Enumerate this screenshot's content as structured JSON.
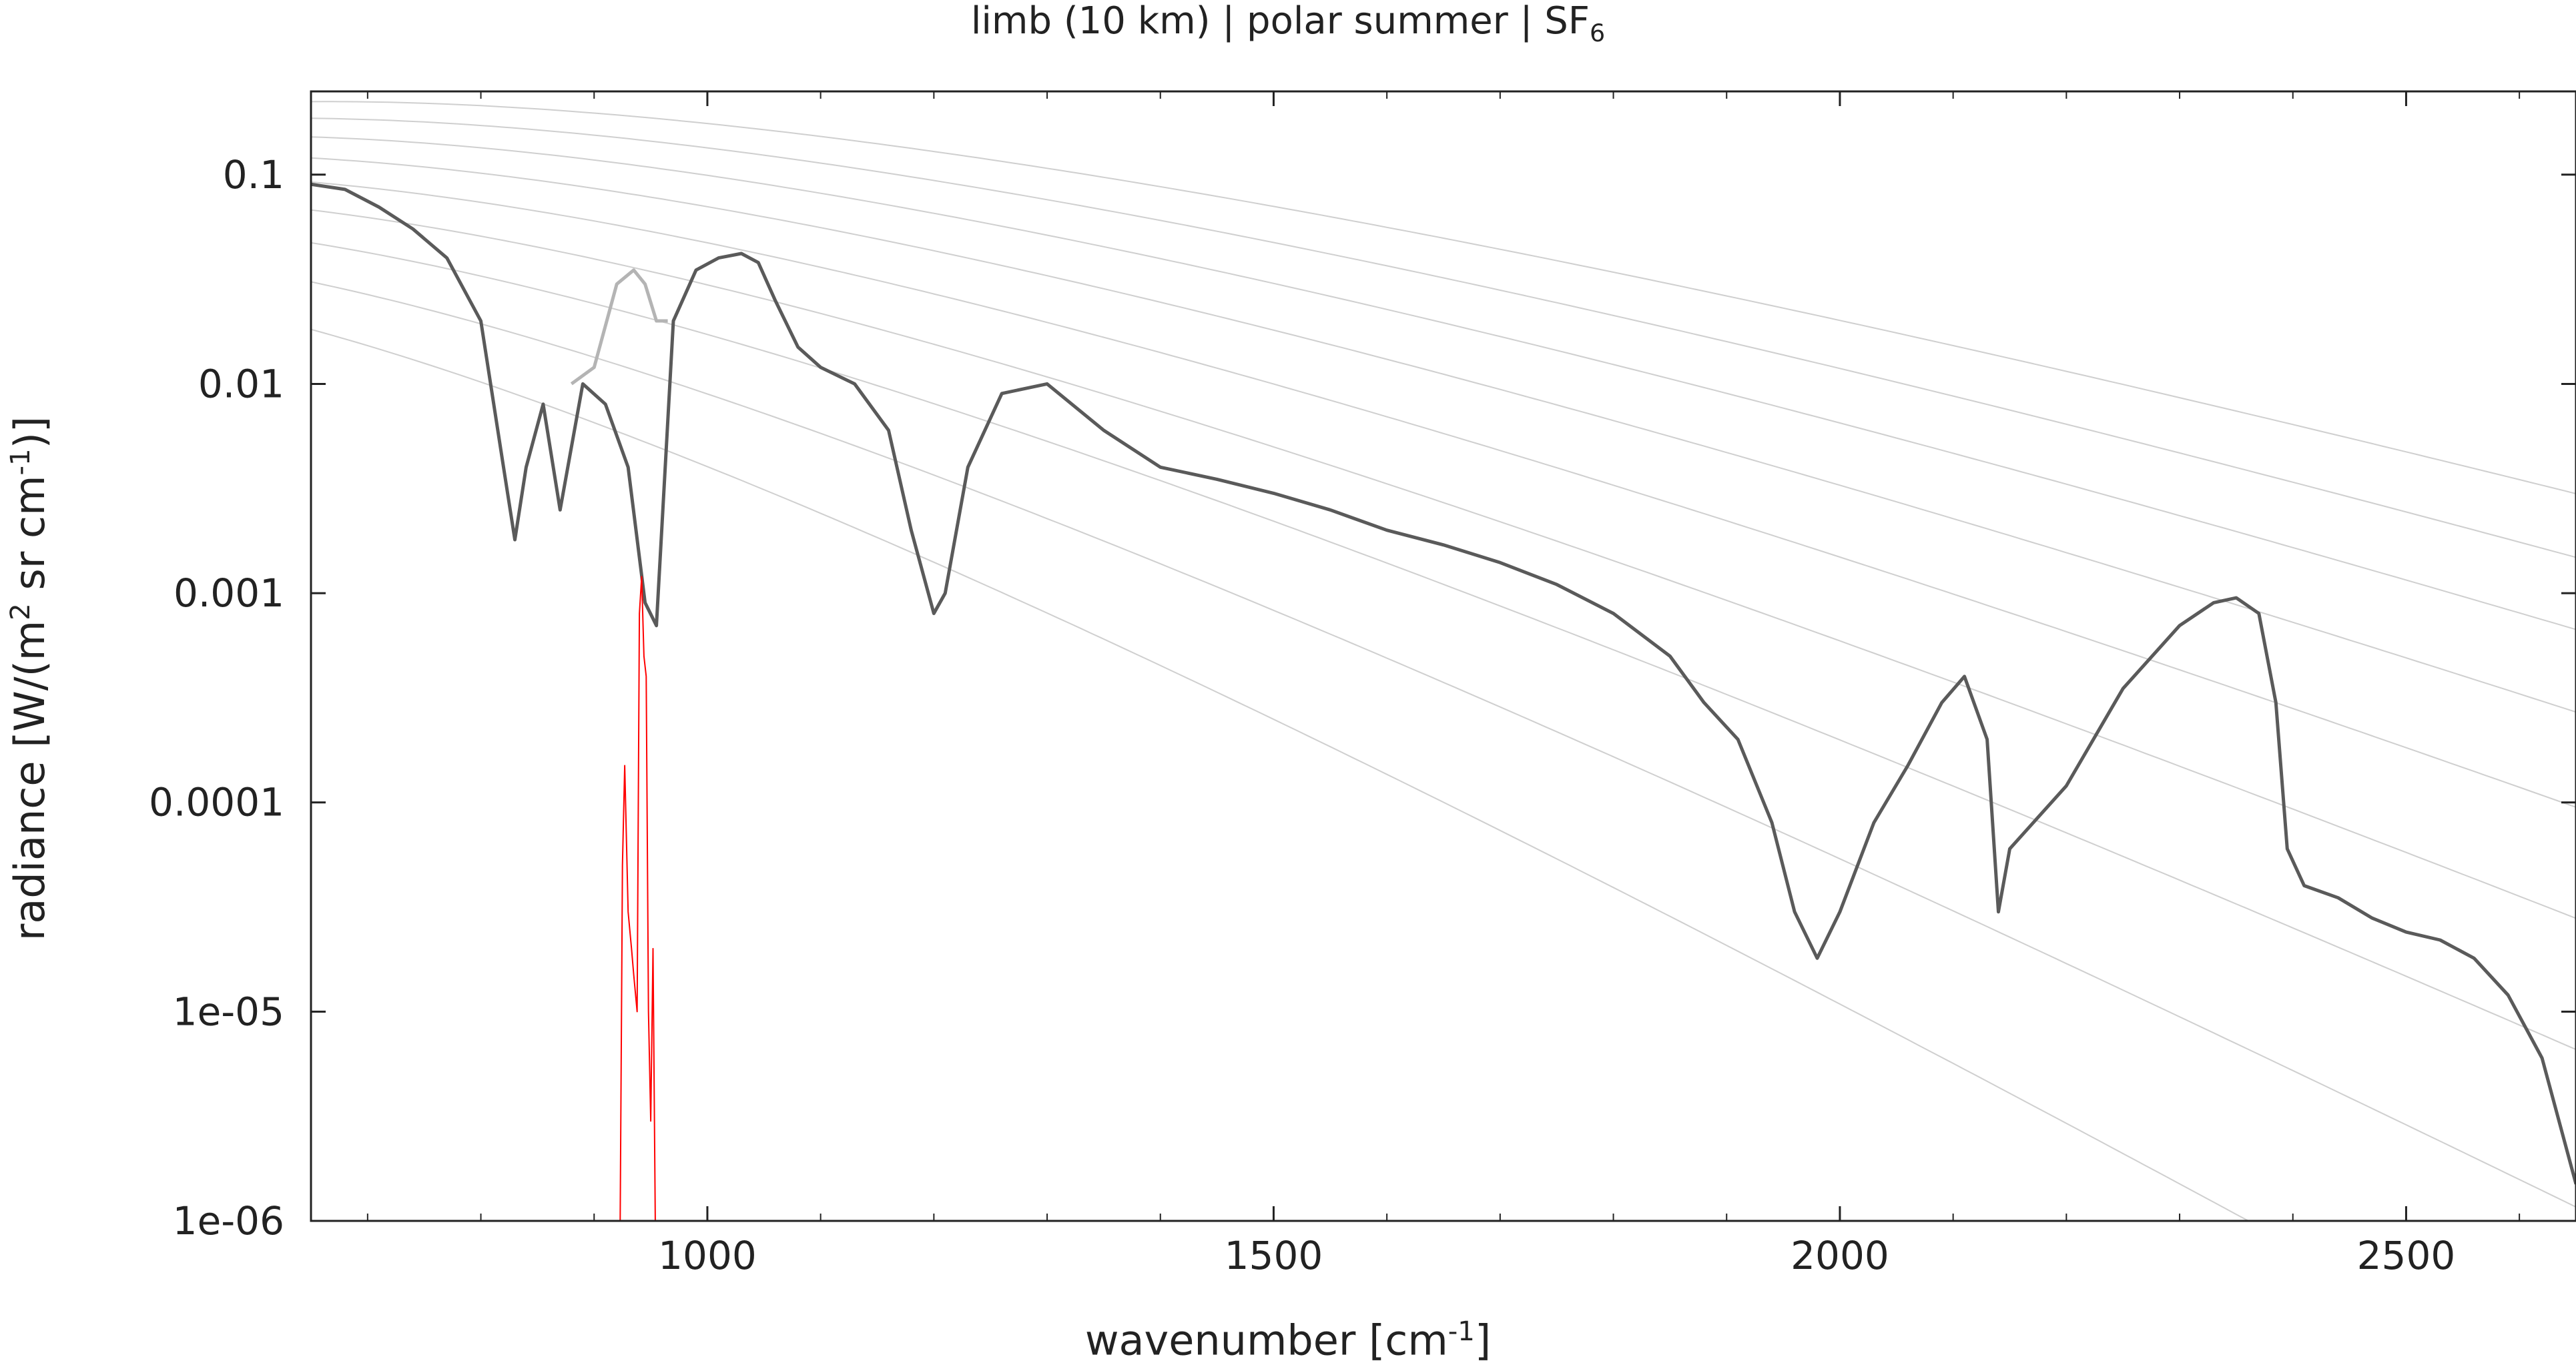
{
  "chart_data": {
    "type": "line",
    "title": "limb (10 km) | polar summer | SF",
    "title_subscript": "6",
    "xlabel": "wavenumber [cm",
    "xlabel_superscript": "-1",
    "xlabel_suffix": "]",
    "ylabel_parts": [
      "radiance [W/(m",
      "2",
      " sr cm",
      "-1",
      ")]"
    ],
    "xlim": [
      650,
      2650
    ],
    "ylim": [
      1e-06,
      0.25
    ],
    "yscale": "log",
    "grid": false,
    "x_ticks": [
      "1000",
      "1500",
      "2000",
      "2500"
    ],
    "y_ticks": [
      "0.1",
      "0.01",
      "0.001",
      "0.0001",
      "1e-05",
      "1e-06"
    ],
    "y_tick_values": [
      0.1,
      0.01,
      0.001,
      0.0001,
      1e-05,
      1e-06
    ],
    "x_tick_values": [
      1000,
      1500,
      2000,
      2500
    ],
    "colors": {
      "spectrum": "#5a5a5a",
      "spectrum_light": "#b4b4b4",
      "target_gas": "#ff0000",
      "planck_curves": "#cfcfcf"
    },
    "series": [
      {
        "role": "total-radiance",
        "x": [
          650,
          680,
          710,
          740,
          770,
          800,
          820,
          830,
          840,
          855,
          870,
          890,
          910,
          930,
          945,
          955,
          970,
          990,
          1010,
          1030,
          1045,
          1060,
          1080,
          1100,
          1130,
          1160,
          1180,
          1200,
          1210,
          1230,
          1260,
          1300,
          1350,
          1400,
          1450,
          1500,
          1550,
          1600,
          1650,
          1700,
          1750,
          1800,
          1850,
          1880,
          1910,
          1940,
          1960,
          1980,
          2000,
          2030,
          2060,
          2090,
          2110,
          2130,
          2140,
          2150,
          2200,
          2250,
          2300,
          2330,
          2350,
          2370,
          2385,
          2395,
          2410,
          2440,
          2470,
          2500,
          2530,
          2560,
          2590,
          2620,
          2650
        ],
        "y": [
          0.09,
          0.085,
          0.07,
          0.055,
          0.04,
          0.02,
          0.004,
          0.0018,
          0.004,
          0.008,
          0.0025,
          0.01,
          0.008,
          0.004,
          0.0009,
          0.0007,
          0.02,
          0.035,
          0.04,
          0.042,
          0.038,
          0.025,
          0.015,
          0.012,
          0.01,
          0.006,
          0.002,
          0.0008,
          0.001,
          0.004,
          0.009,
          0.01,
          0.006,
          0.004,
          0.0035,
          0.003,
          0.0025,
          0.002,
          0.0017,
          0.0014,
          0.0011,
          0.0008,
          0.0005,
          0.0003,
          0.0002,
          8e-05,
          3e-05,
          1.8e-05,
          3e-05,
          8e-05,
          0.00015,
          0.0003,
          0.0004,
          0.0002,
          3e-05,
          6e-05,
          0.00012,
          0.00035,
          0.0007,
          0.0009,
          0.00095,
          0.0008,
          0.0003,
          6e-05,
          4e-05,
          3.5e-05,
          2.8e-05,
          2.4e-05,
          2.2e-05,
          1.8e-05,
          1.2e-05,
          6e-06,
          1.5e-06
        ]
      },
      {
        "role": "without-target-gas",
        "x": [
          880,
          900,
          920,
          935,
          945,
          955,
          965
        ],
        "y": [
          0.01,
          0.012,
          0.03,
          0.035,
          0.03,
          0.02,
          0.02
        ]
      },
      {
        "role": "target-gas-difference",
        "x": [
          923,
          925,
          927,
          930,
          933,
          935,
          938,
          940,
          942,
          944,
          946,
          948,
          950,
          952,
          954
        ],
        "y": [
          1e-06,
          5e-05,
          0.00015,
          3e-05,
          2e-05,
          1.5e-05,
          1e-05,
          0.0008,
          0.0012,
          0.0005,
          0.0004,
          1e-05,
          3e-06,
          2e-05,
          1e-06
        ]
      }
    ],
    "planck_temperatures_K": [
      180,
      200,
      220,
      240,
      260,
      280,
      300,
      320,
      340
    ]
  }
}
